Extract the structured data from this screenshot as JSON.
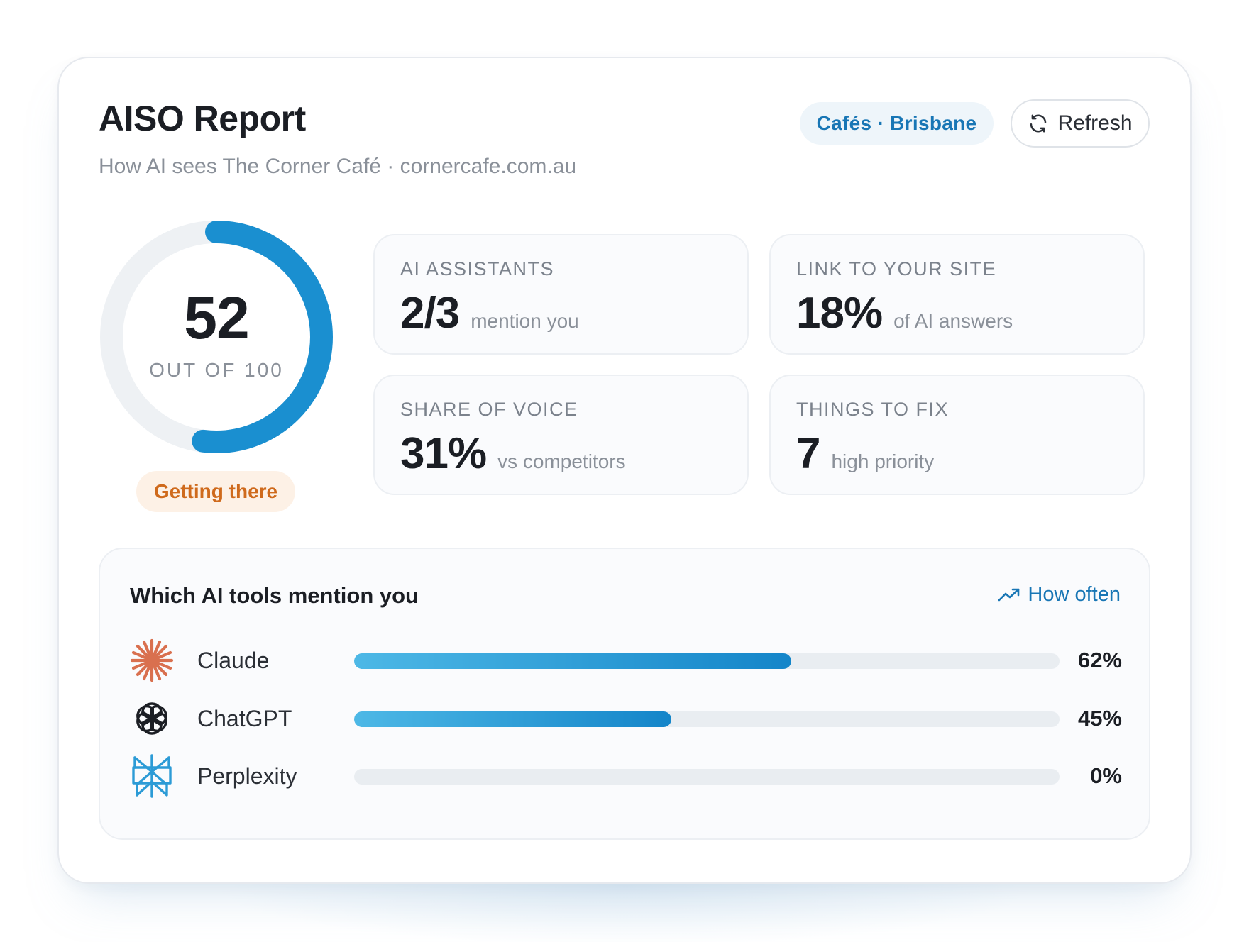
{
  "header": {
    "title": "AISO Report",
    "subtitle": "How AI sees The Corner Café · cornercafe.com.au",
    "chip_label": "Cafés · Brisbane",
    "refresh_label": "Refresh"
  },
  "score": {
    "value": "52",
    "max_caption": "OUT OF 100",
    "fraction": 0.52,
    "status": "Getting there",
    "colors": {
      "arc": "#1a8fd0",
      "track": "#eef1f4",
      "status_text": "#cf6a1c",
      "status_bg": "#fdf1e6"
    }
  },
  "stats": [
    {
      "label": "AI ASSISTANTS",
      "value": "2/3",
      "unit": "mention you"
    },
    {
      "label": "LINK TO YOUR SITE",
      "value": "18%",
      "unit": "of AI answers"
    },
    {
      "label": "SHARE OF VOICE",
      "value": "31%",
      "unit": "vs competitors"
    },
    {
      "label": "THINGS TO FIX",
      "value": "7",
      "unit": "high priority"
    }
  ],
  "tools": {
    "title": "Which AI tools mention you",
    "link_label": "How often",
    "link_icon": "trending-up-icon",
    "items": [
      {
        "name": "Claude",
        "percent_label": "62%",
        "fraction": 0.62,
        "icon": "claude-icon",
        "icon_color": "#d9704f"
      },
      {
        "name": "ChatGPT",
        "percent_label": "45%",
        "fraction": 0.45,
        "icon": "chatgpt-icon",
        "icon_color": "#1b1e24"
      },
      {
        "name": "Perplexity",
        "percent_label": "0%",
        "fraction": 0.0,
        "icon": "perplexity-icon",
        "icon_color": "#2c9bd6"
      }
    ]
  }
}
